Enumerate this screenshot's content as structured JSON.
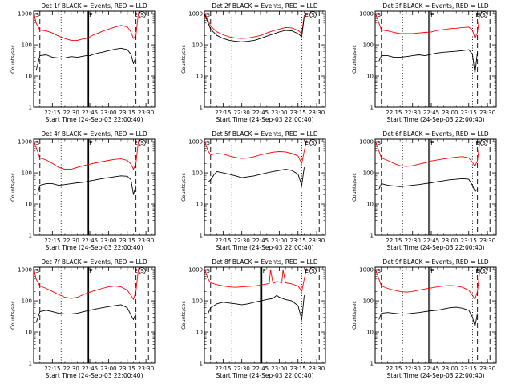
{
  "common": {
    "xlabel": "Start Time (24-Sep-03 22:00:40)",
    "ylabel": "Counts/sec",
    "xticks": [
      "22:15",
      "22:30",
      "22:45",
      "23:00",
      "23:15",
      "23:30"
    ],
    "xtick_minutes": [
      15,
      30,
      45,
      60,
      75,
      90
    ],
    "yticks": [
      1,
      10,
      100,
      1000
    ],
    "ytick_labels": [
      "1",
      "10",
      "100",
      "1000"
    ],
    "xlim_minutes": [
      0,
      97
    ],
    "ylim": [
      1,
      1200
    ],
    "yscale": "log",
    "marker_labels": {
      "s": "S",
      "f": "F",
      "e": "E"
    },
    "colors": {
      "events": "#000000",
      "lld": "#ff0000"
    }
  },
  "chart_data": [
    {
      "type": "line",
      "title": "Det 1f BLACK = Events, RED = LLD",
      "series": [
        {
          "color": "#000000",
          "x": [
            2,
            5,
            10,
            15,
            20,
            25,
            30,
            35,
            38,
            42,
            45,
            48,
            52,
            55,
            60,
            65,
            70,
            75,
            78,
            80,
            82
          ],
          "values": [
            15,
            45,
            48,
            40,
            38,
            38,
            42,
            40,
            42,
            45,
            45,
            50,
            55,
            58,
            65,
            72,
            78,
            70,
            50,
            25,
            40
          ]
        },
        {
          "color": "#ff0000",
          "x": [
            0,
            2,
            5,
            10,
            15,
            20,
            25,
            30,
            35,
            38,
            42,
            45,
            48,
            52,
            55,
            60,
            65,
            70,
            75,
            78,
            80,
            82,
            84
          ],
          "values": [
            1100,
            500,
            300,
            280,
            240,
            190,
            160,
            140,
            140,
            150,
            160,
            180,
            210,
            240,
            270,
            320,
            370,
            420,
            380,
            260,
            160,
            200,
            1100
          ]
        }
      ],
      "markers": {
        "solid": [
          43,
          44
        ],
        "dashed": [
          5,
          82,
          92
        ],
        "dotted": [
          22,
          78
        ]
      }
    },
    {
      "type": "line",
      "title": "Det 2f BLACK = Events, RED = LLD",
      "series": [
        {
          "color": "#000000",
          "x": [
            0,
            5,
            10,
            15,
            20,
            25,
            30,
            35,
            40,
            45,
            50,
            55,
            60,
            65,
            70,
            75,
            78,
            80
          ],
          "values": [
            1000,
            320,
            200,
            160,
            140,
            130,
            125,
            130,
            140,
            160,
            190,
            220,
            260,
            290,
            280,
            230,
            180,
            800
          ]
        },
        {
          "color": "#ff0000",
          "x": [
            0,
            5,
            10,
            15,
            20,
            25,
            30,
            35,
            40,
            45,
            50,
            55,
            60,
            65,
            70,
            75,
            78,
            80
          ],
          "values": [
            1100,
            400,
            260,
            210,
            180,
            165,
            160,
            165,
            180,
            200,
            240,
            280,
            320,
            360,
            350,
            290,
            230,
            900
          ]
        }
      ],
      "markers": {
        "solid": [],
        "dashed": [
          5,
          92
        ],
        "dotted": [
          22,
          78
        ]
      }
    },
    {
      "type": "line",
      "title": "Det 3f BLACK = Events, RED = LLD",
      "series": [
        {
          "color": "#000000",
          "x": [
            3,
            5,
            10,
            15,
            20,
            25,
            30,
            35,
            40,
            45,
            50,
            55,
            60,
            65,
            70,
            75,
            78,
            80,
            82
          ],
          "values": [
            30,
            45,
            45,
            40,
            40,
            42,
            45,
            48,
            45,
            50,
            55,
            58,
            60,
            62,
            65,
            70,
            50,
            12,
            60
          ]
        },
        {
          "color": "#ff0000",
          "x": [
            0,
            3,
            5,
            10,
            15,
            20,
            25,
            30,
            35,
            40,
            45,
            50,
            55,
            60,
            65,
            70,
            75,
            78,
            80,
            82,
            84
          ],
          "values": [
            1100,
            500,
            300,
            280,
            250,
            230,
            230,
            230,
            240,
            250,
            260,
            290,
            310,
            330,
            340,
            360,
            370,
            300,
            160,
            250,
            1100
          ]
        }
      ],
      "markers": {
        "solid": [
          43,
          44
        ],
        "dashed": [
          5,
          82,
          92
        ],
        "dotted": [
          22,
          78
        ]
      }
    },
    {
      "type": "line",
      "title": "Det 4f BLACK = Events, RED = LLD",
      "series": [
        {
          "color": "#000000",
          "x": [
            3,
            5,
            10,
            15,
            20,
            25,
            30,
            35,
            40,
            45,
            50,
            55,
            60,
            65,
            70,
            75,
            78,
            80,
            82
          ],
          "values": [
            20,
            40,
            45,
            45,
            40,
            42,
            45,
            48,
            50,
            55,
            60,
            65,
            70,
            75,
            80,
            78,
            60,
            20,
            40
          ]
        },
        {
          "color": "#ff0000",
          "x": [
            0,
            3,
            5,
            10,
            15,
            20,
            25,
            30,
            35,
            40,
            45,
            50,
            55,
            60,
            65,
            70,
            75,
            78,
            80,
            82,
            84
          ],
          "values": [
            1100,
            500,
            300,
            260,
            200,
            150,
            130,
            130,
            150,
            170,
            190,
            210,
            230,
            250,
            270,
            280,
            250,
            190,
            130,
            200,
            1100
          ]
        }
      ],
      "markers": {
        "solid": [
          43,
          44
        ],
        "dashed": [
          5,
          82,
          92
        ],
        "dotted": [
          22,
          78
        ]
      }
    },
    {
      "type": "line",
      "title": "Det 5f BLACK = Events, RED = LLD",
      "series": [
        {
          "color": "#000000",
          "x": [
            3,
            5,
            8,
            10,
            15,
            20,
            25,
            30,
            35,
            40,
            45,
            50,
            55,
            60,
            65,
            70,
            75,
            78,
            80
          ],
          "values": [
            50,
            60,
            90,
            110,
            100,
            90,
            80,
            70,
            75,
            80,
            90,
            100,
            110,
            120,
            130,
            120,
            90,
            40,
            150
          ]
        },
        {
          "color": "#ff0000",
          "x": [
            0,
            3,
            5,
            8,
            10,
            15,
            20,
            25,
            30,
            35,
            40,
            45,
            50,
            55,
            60,
            65,
            70,
            75,
            78,
            80,
            82
          ],
          "values": [
            1100,
            500,
            380,
            400,
            420,
            400,
            350,
            310,
            290,
            300,
            330,
            380,
            420,
            460,
            480,
            470,
            420,
            350,
            200,
            500,
            1100
          ]
        }
      ],
      "markers": {
        "solid": [],
        "dashed": [
          5,
          92
        ],
        "dotted": [
          22,
          78
        ]
      }
    },
    {
      "type": "line",
      "title": "Det 6f BLACK = Events, RED = LLD",
      "series": [
        {
          "color": "#000000",
          "x": [
            3,
            5,
            10,
            15,
            20,
            25,
            30,
            35,
            40,
            45,
            50,
            55,
            60,
            65,
            70,
            75,
            78,
            80,
            82
          ],
          "values": [
            30,
            45,
            40,
            38,
            36,
            38,
            40,
            42,
            45,
            48,
            52,
            56,
            60,
            62,
            65,
            62,
            40,
            25,
            30
          ]
        },
        {
          "color": "#ff0000",
          "x": [
            0,
            3,
            5,
            10,
            15,
            20,
            25,
            30,
            35,
            40,
            45,
            50,
            55,
            60,
            65,
            70,
            75,
            78,
            80,
            82,
            84
          ],
          "values": [
            1100,
            500,
            300,
            250,
            200,
            170,
            160,
            170,
            190,
            210,
            240,
            260,
            280,
            300,
            320,
            330,
            300,
            220,
            160,
            250,
            1100
          ]
        }
      ],
      "markers": {
        "solid": [
          43,
          44
        ],
        "dashed": [
          5,
          82,
          92
        ],
        "dotted": [
          22,
          78
        ]
      }
    },
    {
      "type": "line",
      "title": "Det 7f BLACK = Events, RED = LLD",
      "series": [
        {
          "color": "#000000",
          "x": [
            2,
            5,
            10,
            15,
            20,
            25,
            30,
            35,
            40,
            45,
            50,
            55,
            60,
            65,
            70,
            75,
            78,
            80,
            82
          ],
          "values": [
            20,
            45,
            50,
            45,
            40,
            38,
            38,
            40,
            45,
            50,
            55,
            60,
            65,
            70,
            75,
            60,
            35,
            25,
            40
          ]
        },
        {
          "color": "#ff0000",
          "x": [
            0,
            2,
            5,
            10,
            15,
            20,
            25,
            30,
            35,
            40,
            45,
            50,
            55,
            60,
            65,
            70,
            75,
            78,
            80,
            82,
            84
          ],
          "values": [
            1100,
            500,
            300,
            250,
            200,
            160,
            130,
            120,
            130,
            160,
            190,
            220,
            250,
            280,
            300,
            280,
            220,
            150,
            110,
            200,
            1100
          ]
        }
      ],
      "markers": {
        "solid": [
          43,
          44
        ],
        "dashed": [
          5,
          82,
          92
        ],
        "dotted": [
          22,
          78
        ]
      }
    },
    {
      "type": "line",
      "title": "Det 8f BLACK = Events, RED = LLD",
      "series": [
        {
          "color": "#000000",
          "x": [
            3,
            5,
            10,
            15,
            20,
            25,
            30,
            35,
            40,
            45,
            50,
            55,
            58,
            60,
            65,
            70,
            75,
            78,
            80
          ],
          "values": [
            40,
            60,
            80,
            90,
            85,
            80,
            75,
            80,
            90,
            100,
            110,
            120,
            150,
            130,
            110,
            100,
            70,
            25,
            150
          ]
        },
        {
          "color": "#ff0000",
          "x": [
            0,
            3,
            5,
            10,
            15,
            20,
            25,
            30,
            35,
            40,
            45,
            50,
            52,
            53,
            55,
            58,
            60,
            62,
            63,
            65,
            70,
            75,
            78,
            80,
            82
          ],
          "values": [
            1100,
            500,
            380,
            330,
            300,
            280,
            270,
            280,
            290,
            300,
            320,
            350,
            360,
            1000,
            360,
            420,
            400,
            380,
            1000,
            380,
            350,
            300,
            200,
            500,
            1100
          ]
        }
      ],
      "markers": {
        "solid": [
          45,
          46
        ],
        "dashed": [
          5,
          92
        ],
        "dotted": [
          22,
          78
        ]
      }
    },
    {
      "type": "line",
      "title": "Det 9f BLACK = Events, RED = LLD",
      "series": [
        {
          "color": "#000000",
          "x": [
            3,
            5,
            10,
            15,
            20,
            25,
            30,
            35,
            40,
            45,
            50,
            55,
            60,
            65,
            70,
            75,
            78,
            80,
            82
          ],
          "values": [
            25,
            40,
            42,
            40,
            38,
            38,
            40,
            42,
            45,
            48,
            50,
            55,
            60,
            62,
            58,
            50,
            30,
            15,
            40
          ]
        },
        {
          "color": "#ff0000",
          "x": [
            0,
            3,
            5,
            10,
            15,
            20,
            25,
            30,
            35,
            40,
            45,
            50,
            55,
            60,
            65,
            70,
            75,
            78,
            80,
            82,
            84
          ],
          "values": [
            1100,
            500,
            300,
            250,
            220,
            200,
            190,
            200,
            220,
            240,
            260,
            280,
            300,
            310,
            300,
            270,
            220,
            150,
            110,
            200,
            1100
          ]
        }
      ],
      "markers": {
        "solid": [
          43,
          44
        ],
        "dashed": [
          5,
          82,
          92
        ],
        "dotted": [
          22,
          78
        ]
      }
    }
  ]
}
